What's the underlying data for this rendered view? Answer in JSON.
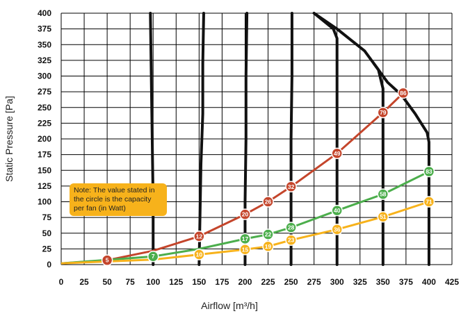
{
  "chart_data": {
    "type": "line",
    "xlabel": "Airflow [m³/h]",
    "ylabel": "Static Pressure [Pa]",
    "xlim": [
      0,
      425
    ],
    "ylim": [
      0,
      400
    ],
    "x_ticks": [
      0,
      25,
      50,
      75,
      100,
      125,
      150,
      175,
      200,
      225,
      250,
      275,
      300,
      325,
      350,
      375,
      400,
      425
    ],
    "y_ticks": [
      0,
      25,
      50,
      75,
      100,
      125,
      150,
      175,
      200,
      225,
      250,
      275,
      300,
      325,
      350,
      375,
      400
    ],
    "grid": true,
    "fan_curves": [
      {
        "points": [
          [
            100,
            0
          ],
          [
            100,
            100
          ],
          [
            99,
            200
          ],
          [
            98,
            300
          ],
          [
            97,
            400
          ]
        ]
      },
      {
        "points": [
          [
            150,
            0
          ],
          [
            151,
            80
          ],
          [
            152,
            160
          ],
          [
            154,
            240
          ],
          [
            154,
            320
          ],
          [
            155,
            400
          ]
        ]
      },
      {
        "points": [
          [
            200,
            0
          ],
          [
            200,
            100
          ],
          [
            201,
            200
          ],
          [
            201,
            300
          ],
          [
            202,
            400
          ]
        ]
      },
      {
        "points": [
          [
            250,
            0
          ],
          [
            250,
            100
          ],
          [
            250,
            200
          ],
          [
            251,
            300
          ],
          [
            251,
            400
          ]
        ]
      },
      {
        "points": [
          [
            300,
            0
          ],
          [
            300,
            100
          ],
          [
            300,
            200
          ],
          [
            300,
            300
          ],
          [
            300,
            360
          ],
          [
            296,
            375
          ],
          [
            275,
            400
          ]
        ]
      },
      {
        "points": [
          [
            350,
            0
          ],
          [
            350,
            100
          ],
          [
            350,
            200
          ],
          [
            350,
            280
          ],
          [
            345,
            310
          ],
          [
            330,
            340
          ],
          [
            300,
            375
          ],
          [
            275,
            400
          ]
        ]
      },
      {
        "points": [
          [
            400,
            0
          ],
          [
            400,
            100
          ],
          [
            400,
            195
          ],
          [
            398,
            210
          ],
          [
            385,
            240
          ],
          [
            370,
            270
          ],
          [
            355,
            290
          ],
          [
            340,
            320
          ]
        ]
      }
    ],
    "series": [
      {
        "color": "#c4452b",
        "points": [
          [
            0,
            2
          ],
          [
            50,
            7
          ],
          [
            100,
            22
          ],
          [
            150,
            45
          ],
          [
            200,
            80
          ],
          [
            225,
            100
          ],
          [
            250,
            124
          ],
          [
            300,
            177
          ],
          [
            350,
            242
          ],
          [
            372,
            273
          ]
        ],
        "markers": [
          {
            "x": 50,
            "y": 7,
            "label": "5"
          },
          {
            "x": 150,
            "y": 45,
            "label": "12"
          },
          {
            "x": 200,
            "y": 80,
            "label": "20"
          },
          {
            "x": 225,
            "y": 100,
            "label": "26"
          },
          {
            "x": 250,
            "y": 124,
            "label": "32"
          },
          {
            "x": 300,
            "y": 177,
            "label": "49"
          },
          {
            "x": 350,
            "y": 242,
            "label": "79"
          },
          {
            "x": 372,
            "y": 273,
            "label": "86"
          }
        ]
      },
      {
        "color": "#4cae4c",
        "points": [
          [
            0,
            2
          ],
          [
            100,
            13
          ],
          [
            150,
            25
          ],
          [
            200,
            41
          ],
          [
            225,
            48
          ],
          [
            250,
            59
          ],
          [
            300,
            86
          ],
          [
            350,
            112
          ],
          [
            400,
            148
          ]
        ],
        "markers": [
          {
            "x": 100,
            "y": 13,
            "label": "7"
          },
          {
            "x": 200,
            "y": 41,
            "label": "17"
          },
          {
            "x": 225,
            "y": 48,
            "label": "22"
          },
          {
            "x": 250,
            "y": 59,
            "label": "28"
          },
          {
            "x": 300,
            "y": 86,
            "label": "40"
          },
          {
            "x": 350,
            "y": 112,
            "label": "58"
          },
          {
            "x": 400,
            "y": 148,
            "label": "83"
          }
        ]
      },
      {
        "color": "#f7b21b",
        "points": [
          [
            0,
            2
          ],
          [
            100,
            8
          ],
          [
            150,
            16
          ],
          [
            200,
            24
          ],
          [
            225,
            29
          ],
          [
            250,
            39
          ],
          [
            300,
            56
          ],
          [
            350,
            76
          ],
          [
            400,
            100
          ]
        ],
        "markers": [
          {
            "x": 150,
            "y": 16,
            "label": "10"
          },
          {
            "x": 200,
            "y": 24,
            "label": "15"
          },
          {
            "x": 225,
            "y": 29,
            "label": "19"
          },
          {
            "x": 250,
            "y": 39,
            "label": "23"
          },
          {
            "x": 300,
            "y": 56,
            "label": "36"
          },
          {
            "x": 350,
            "y": 76,
            "label": "51"
          },
          {
            "x": 400,
            "y": 100,
            "label": "71"
          }
        ]
      }
    ],
    "note": "Note: The value stated in the circle is the capacity per fan (in Watt)"
  }
}
